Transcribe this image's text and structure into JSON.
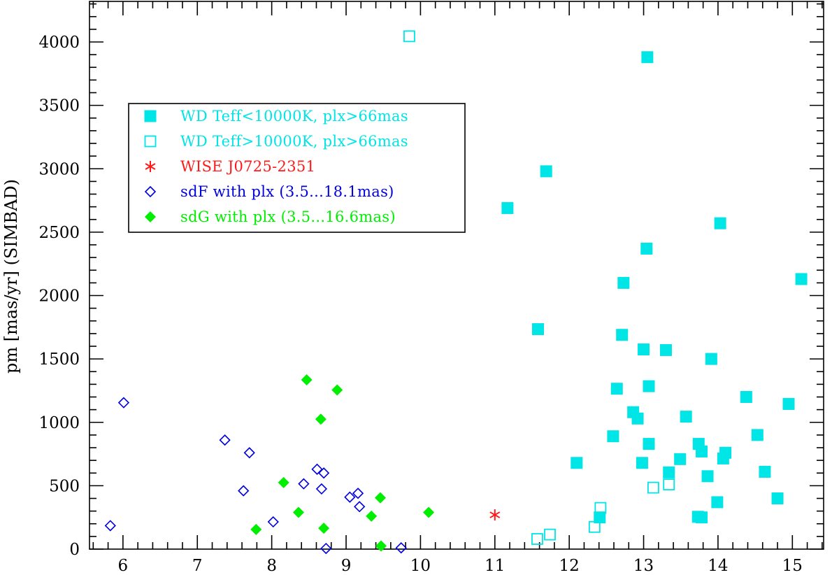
{
  "chart_data": {
    "type": "scatter",
    "title": "",
    "xlabel": "",
    "ylabel": "pm [mas/yr] (SIMBAD)",
    "xlim": [
      5.55,
      15.42
    ],
    "ylim": [
      0,
      4320
    ],
    "x_ticks": [
      "6",
      "7",
      "8",
      "9",
      "10",
      "11",
      "12",
      "13",
      "14",
      "15"
    ],
    "y_ticks": [
      "0",
      "500",
      "1000",
      "1500",
      "2000",
      "2500",
      "3000",
      "3500",
      "4000"
    ],
    "grid": false,
    "legend_position": "top-left",
    "series": [
      {
        "name": "WD Teff<10000K, plx>66mas",
        "marker": "filled-square",
        "color": "#00e5e5",
        "points": [
          [
            13.05,
            3880
          ],
          [
            11.69,
            2980
          ],
          [
            11.17,
            2690
          ],
          [
            14.03,
            2570
          ],
          [
            13.04,
            2370
          ],
          [
            15.12,
            2130
          ],
          [
            12.73,
            2100
          ],
          [
            11.58,
            1735
          ],
          [
            12.71,
            1690
          ],
          [
            13.0,
            1575
          ],
          [
            13.3,
            1570
          ],
          [
            13.91,
            1500
          ],
          [
            13.07,
            1285
          ],
          [
            12.64,
            1265
          ],
          [
            14.38,
            1200
          ],
          [
            14.95,
            1145
          ],
          [
            12.86,
            1080
          ],
          [
            12.92,
            1030
          ],
          [
            13.57,
            1045
          ],
          [
            12.59,
            890
          ],
          [
            14.53,
            900
          ],
          [
            13.74,
            830
          ],
          [
            13.07,
            830
          ],
          [
            13.78,
            770
          ],
          [
            14.1,
            760
          ],
          [
            14.07,
            715
          ],
          [
            13.49,
            710
          ],
          [
            12.1,
            680
          ],
          [
            12.98,
            680
          ],
          [
            14.63,
            610
          ],
          [
            13.34,
            605
          ],
          [
            13.86,
            575
          ],
          [
            14.8,
            400
          ],
          [
            13.99,
            370
          ],
          [
            13.73,
            255
          ],
          [
            13.78,
            250
          ],
          [
            12.41,
            250
          ]
        ]
      },
      {
        "name": "WD Teff>10000K, plx>66mas",
        "marker": "open-square",
        "color": "#00e5e5",
        "points": [
          [
            9.85,
            4045
          ],
          [
            13.13,
            485
          ],
          [
            13.34,
            510
          ],
          [
            12.42,
            325
          ],
          [
            12.34,
            175
          ],
          [
            11.74,
            115
          ],
          [
            11.57,
            80
          ]
        ]
      },
      {
        "name": "WISE J0725-2351",
        "marker": "asterisk",
        "color": "#ff1a1a",
        "points": [
          [
            11.0,
            270
          ]
        ]
      },
      {
        "name": "sdF with plx (3.5...18.1mas)",
        "marker": "open-diamond",
        "color": "#0000e0",
        "points": [
          [
            6.01,
            1155
          ],
          [
            7.37,
            860
          ],
          [
            7.7,
            760
          ],
          [
            7.62,
            460
          ],
          [
            8.02,
            215
          ],
          [
            5.83,
            185
          ],
          [
            8.43,
            515
          ],
          [
            8.61,
            630
          ],
          [
            8.7,
            600
          ],
          [
            8.67,
            475
          ],
          [
            9.05,
            410
          ],
          [
            9.16,
            440
          ],
          [
            9.18,
            335
          ],
          [
            8.73,
            5
          ],
          [
            9.74,
            10
          ]
        ]
      },
      {
        "name": "sdG with plx (3.5...16.6mas)",
        "marker": "filled-diamond",
        "color": "#00ee00",
        "points": [
          [
            8.47,
            1335
          ],
          [
            8.88,
            1255
          ],
          [
            8.66,
            1025
          ],
          [
            8.16,
            525
          ],
          [
            8.36,
            290
          ],
          [
            7.79,
            155
          ],
          [
            8.7,
            165
          ],
          [
            9.46,
            405
          ],
          [
            9.34,
            260
          ],
          [
            10.11,
            290
          ],
          [
            9.47,
            25
          ]
        ]
      }
    ]
  }
}
